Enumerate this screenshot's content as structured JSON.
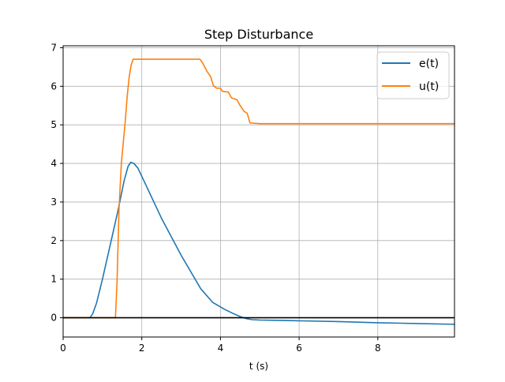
{
  "chart_data": {
    "type": "line",
    "title": "Step Disturbance",
    "xlabel": "t (s)",
    "ylabel": "",
    "xlim": [
      0,
      9.95
    ],
    "ylim": [
      -0.5,
      7.05
    ],
    "x_ticks": [
      0,
      2,
      4,
      6,
      8
    ],
    "y_ticks": [
      0,
      1,
      2,
      3,
      4,
      5,
      6,
      7
    ],
    "grid": true,
    "legend_position": "top-right",
    "reference_line": {
      "y": 0,
      "color": "#000000"
    },
    "series": [
      {
        "name": "e(t)",
        "color": "#1f77b4",
        "points": [
          [
            0,
            0
          ],
          [
            0.68,
            0
          ],
          [
            0.75,
            0.1
          ],
          [
            0.85,
            0.38
          ],
          [
            1.0,
            1.0
          ],
          [
            1.2,
            1.9
          ],
          [
            1.4,
            2.8
          ],
          [
            1.55,
            3.55
          ],
          [
            1.65,
            3.92
          ],
          [
            1.72,
            4.03
          ],
          [
            1.8,
            4.0
          ],
          [
            1.9,
            3.88
          ],
          [
            2.1,
            3.45
          ],
          [
            2.5,
            2.58
          ],
          [
            3.0,
            1.62
          ],
          [
            3.5,
            0.75
          ],
          [
            3.8,
            0.4
          ],
          [
            4.1,
            0.22
          ],
          [
            4.3,
            0.12
          ],
          [
            4.5,
            0.03
          ],
          [
            4.65,
            -0.02
          ],
          [
            4.8,
            -0.05
          ],
          [
            5.0,
            -0.06
          ],
          [
            5.5,
            -0.07
          ],
          [
            6.0,
            -0.08
          ],
          [
            7.0,
            -0.1
          ],
          [
            8.0,
            -0.13
          ],
          [
            9.0,
            -0.15
          ],
          [
            9.95,
            -0.17
          ]
        ]
      },
      {
        "name": "u(t)",
        "color": "#ff7f0e",
        "points": [
          [
            0,
            0
          ],
          [
            1.33,
            0
          ],
          [
            1.37,
            0.9
          ],
          [
            1.42,
            2.8
          ],
          [
            1.48,
            4.0
          ],
          [
            1.53,
            4.55
          ],
          [
            1.58,
            5.1
          ],
          [
            1.63,
            5.75
          ],
          [
            1.68,
            6.25
          ],
          [
            1.73,
            6.55
          ],
          [
            1.78,
            6.7
          ],
          [
            3.2,
            6.7
          ],
          [
            3.48,
            6.7
          ],
          [
            3.55,
            6.6
          ],
          [
            3.65,
            6.4
          ],
          [
            3.75,
            6.25
          ],
          [
            3.82,
            6.02
          ],
          [
            3.9,
            5.95
          ],
          [
            4.0,
            5.95
          ],
          [
            4.05,
            5.87
          ],
          [
            4.2,
            5.85
          ],
          [
            4.28,
            5.7
          ],
          [
            4.42,
            5.65
          ],
          [
            4.5,
            5.5
          ],
          [
            4.6,
            5.35
          ],
          [
            4.68,
            5.3
          ],
          [
            4.75,
            5.05
          ],
          [
            5.0,
            5.03
          ],
          [
            6.0,
            5.03
          ],
          [
            7.0,
            5.03
          ],
          [
            8.0,
            5.03
          ],
          [
            9.95,
            5.03
          ]
        ]
      }
    ]
  }
}
